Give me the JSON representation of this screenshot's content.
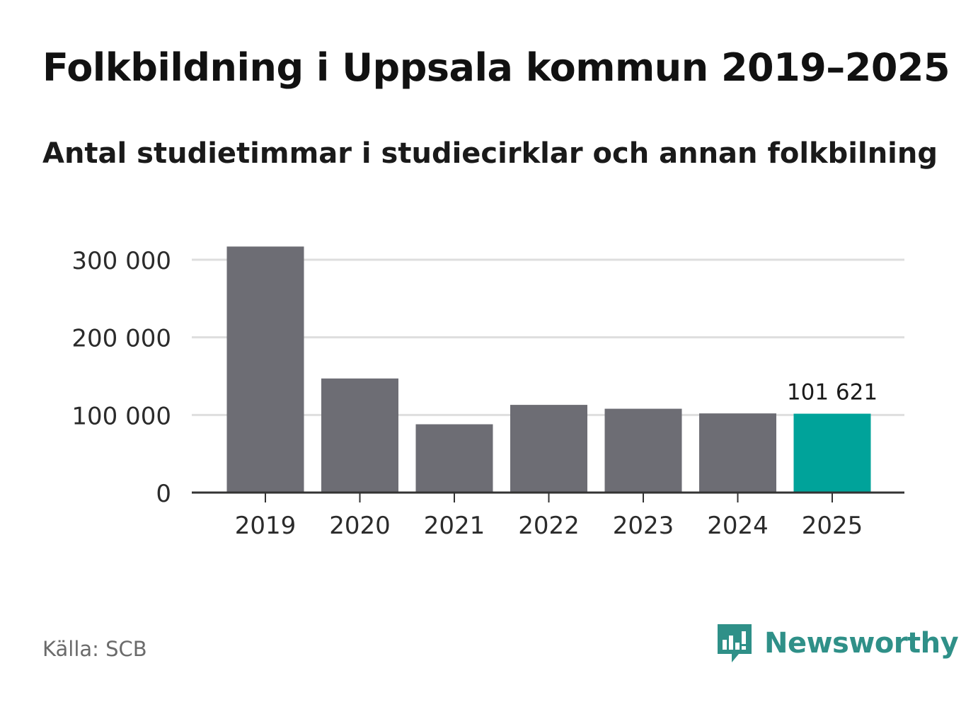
{
  "chart_data": {
    "type": "bar",
    "title": "Folkbildning i Uppsala kommun 2019–2025",
    "subtitle": "Antal studietimmar i studiecirklar och annan folkbilning",
    "categories": [
      "2019",
      "2020",
      "2021",
      "2022",
      "2023",
      "2024",
      "2025"
    ],
    "values": [
      317000,
      147000,
      88000,
      113000,
      108000,
      102000,
      101621
    ],
    "y_ticks": [
      0,
      100000,
      200000,
      300000
    ],
    "y_tick_labels": [
      "0",
      "100 000",
      "200 000",
      "300 000"
    ],
    "ylim": [
      0,
      320000
    ],
    "grid": true,
    "highlight_index": 6,
    "highlight_label": "101 621",
    "colors": {
      "bar": "#6d6d74",
      "highlight": "#00a39a",
      "grid": "#dedede",
      "axis": "#333333"
    }
  },
  "footer": {
    "source": "Källa: SCB"
  },
  "brand": {
    "name": "Newsworthy",
    "icon": "newsworthy-logo-icon",
    "color": "#2f9088"
  }
}
